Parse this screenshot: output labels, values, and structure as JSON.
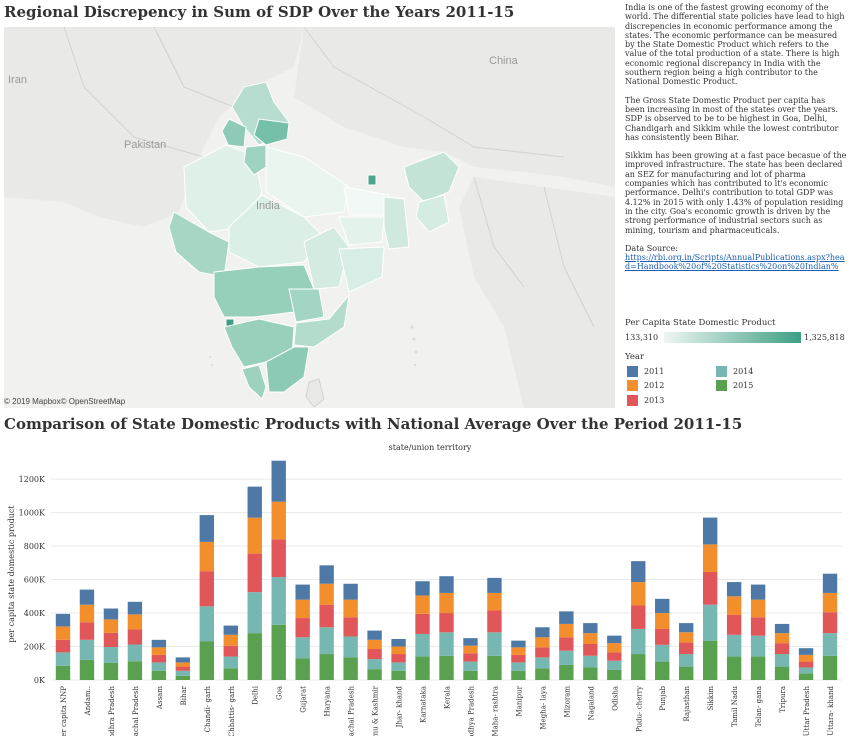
{
  "map": {
    "title": "Regional Discrepency in Sum of SDP Over the Years 2011-15",
    "labels": {
      "iran": "Iran",
      "china": "China",
      "pakistan": "Pakistan",
      "india": "India"
    },
    "copyright": "© 2019 Mapbox© OpenStreetMap"
  },
  "description": {
    "p1": "India is one of the fastest growing economy of the world. The differential state policies have lead to high discrepencies in economic performance among the states. The economic performance can be measured by the State Domestic Product which refers to the value of the total production of a state. There is high economic regional discrepancy in India with the southern region being a high contributor to the National Domestic Product.",
    "p2": "The Gross State Domestic Product per capita has been increasing in most of the states over the years. SDP is observed to be to be highest in Goa, Delhi, Chandigarh and Sikkim while the lowest contributor has consistently been Bihar.",
    "p3": "Sikkim has been growing at a fast pace becasue of the improved infrastructure. The state has been declared an SEZ for manufacturing and lot of pharma companies which has contributed to it's economic performance. Delhi's contribution to total GDP was 4.12% in 2015 with only 1.43% of population residing in the city. Goa's economic growth is driven by the strong performance of industrial sectors such as mining, tourism and pharmaceuticals.",
    "source_label": "Data Source:",
    "source_link": "https://rbi.org.in/Scripts/AnnualPublications.aspx?head=Handbook%20of%20Statistics%20on%20Indian%"
  },
  "legend": {
    "gradient_title": "Per Capita State Domestic Product",
    "min": "133,310",
    "max": "1,325,818",
    "gradient_colors": [
      "#eef6f2",
      "#3d9e84"
    ],
    "year_title": "Year",
    "years": [
      {
        "label": "2011",
        "color": "#4e79a7"
      },
      {
        "label": "2012",
        "color": "#f28e2b"
      },
      {
        "label": "2013",
        "color": "#e15759"
      },
      {
        "label": "2014",
        "color": "#76b7b2"
      },
      {
        "label": "2015",
        "color": "#59a14f"
      }
    ]
  },
  "chart_data": {
    "type": "bar",
    "stacked": true,
    "title": "Comparison of State Domestic Products with National Average Over the Period 2011-15",
    "top_label": "state/union territory",
    "ylabel": "per capita state domestic product",
    "ylim": [
      0,
      1350000
    ],
    "yticks": [
      0,
      200000,
      400000,
      600000,
      800000,
      1000000,
      1200000
    ],
    "ytick_labels": [
      "0K",
      "200K",
      "400K",
      "600K",
      "800K",
      "1000K",
      "1200K"
    ],
    "grid": true,
    "categories": [
      "All-India per capita NNP",
      "Andam..",
      "Andhra Pradesh",
      "Arunachal Pradesh",
      "Assam",
      "Bihar",
      "Chandi- garh",
      "Chhattis- garh",
      "Delhi",
      "Goa",
      "Gujarat",
      "Haryana",
      "Himachal Pradesh",
      "Jammu & Kashmir",
      "Jhar- khand",
      "Karnataka",
      "Kerala",
      "Madhya Pradesh",
      "Maha- rashtra",
      "Manipur",
      "Megha- laya",
      "Mizoram",
      "Nagaland",
      "Odisha",
      "Pudu- cherry",
      "Punjab",
      "Rajasthan",
      "Sikkim",
      "Tamil Nadu",
      "Telan- gana",
      "Tripura",
      "Uttar Pradesh",
      "Uttara- khand"
    ],
    "series": [
      {
        "name": "2015",
        "color": "#59a14f",
        "values": [
          85000,
          120000,
          102000,
          112000,
          55000,
          25000,
          230000,
          70000,
          280000,
          330000,
          130000,
          155000,
          135000,
          65000,
          55000,
          140000,
          145000,
          55000,
          145000,
          55000,
          70000,
          90000,
          75000,
          60000,
          155000,
          110000,
          80000,
          235000,
          140000,
          140000,
          80000,
          40000,
          145000
        ]
      },
      {
        "name": "2014",
        "color": "#76b7b2",
        "values": [
          80000,
          120000,
          95000,
          100000,
          50000,
          30000,
          210000,
          70000,
          245000,
          285000,
          125000,
          160000,
          125000,
          60000,
          50000,
          135000,
          140000,
          55000,
          140000,
          50000,
          65000,
          85000,
          70000,
          55000,
          150000,
          100000,
          75000,
          215000,
          130000,
          125000,
          75000,
          35000,
          135000
        ]
      },
      {
        "name": "2013",
        "color": "#e15759",
        "values": [
          75000,
          105000,
          85000,
          90000,
          45000,
          25000,
          210000,
          65000,
          230000,
          225000,
          115000,
          135000,
          115000,
          60000,
          50000,
          120000,
          115000,
          50000,
          130000,
          45000,
          60000,
          80000,
          70000,
          50000,
          140000,
          95000,
          70000,
          195000,
          120000,
          110000,
          65000,
          35000,
          125000
        ]
      },
      {
        "name": "2012",
        "color": "#f28e2b",
        "values": [
          80000,
          105000,
          80000,
          90000,
          45000,
          25000,
          175000,
          65000,
          215000,
          225000,
          110000,
          125000,
          105000,
          55000,
          45000,
          110000,
          120000,
          45000,
          105000,
          45000,
          60000,
          80000,
          65000,
          55000,
          140000,
          95000,
          60000,
          165000,
          110000,
          105000,
          60000,
          40000,
          115000
        ]
      },
      {
        "name": "2011",
        "color": "#4e79a7",
        "values": [
          75000,
          90000,
          65000,
          75000,
          45000,
          30000,
          160000,
          55000,
          185000,
          245000,
          90000,
          110000,
          95000,
          55000,
          45000,
          85000,
          100000,
          45000,
          90000,
          40000,
          60000,
          75000,
          60000,
          45000,
          125000,
          85000,
          55000,
          160000,
          85000,
          90000,
          55000,
          40000,
          115000
        ]
      }
    ]
  }
}
